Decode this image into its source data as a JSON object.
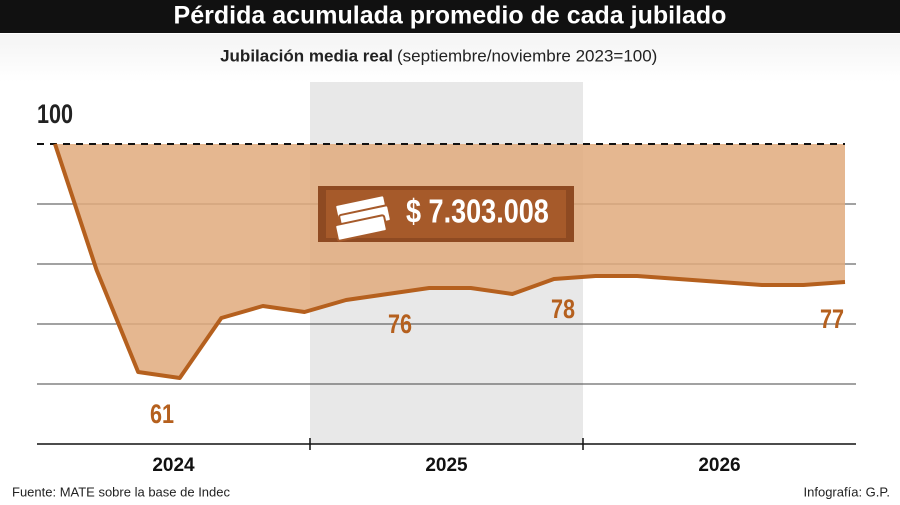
{
  "chart_data": {
    "type": "line",
    "title": "Pérdida acumulada promedio de cada jubilado",
    "subtitle": "Jubilación media real",
    "subtitle_note": "(septiembre/noviembre 2023=100)",
    "categories": [
      null,
      null,
      null,
      null,
      null,
      null,
      null,
      null,
      null,
      null,
      null,
      null,
      null,
      null,
      null,
      null,
      null,
      null,
      null,
      null
    ],
    "series": [
      {
        "name": "Jubilación media real",
        "color": "#b5601e",
        "values": [
          100,
          79,
          62,
          61,
          71,
          73,
          72,
          74,
          75,
          76,
          76,
          75,
          77.5,
          78,
          78,
          77.5,
          77,
          76.5,
          76.5,
          77
        ]
      }
    ],
    "reference": 100,
    "area_color": "#e0aa7c",
    "periods": [
      "2024",
      "2025",
      "2026"
    ],
    "ylim": [
      50,
      110
    ],
    "yticks": [
      50,
      60,
      70,
      80,
      90
    ],
    "grid": true,
    "annotations": [
      "100",
      "61",
      "76",
      "78",
      "77",
      "$ 7.303.008"
    ],
    "source": "Fuente: MATE sobre la base de Indec",
    "credit": "Infografía: G.P."
  }
}
